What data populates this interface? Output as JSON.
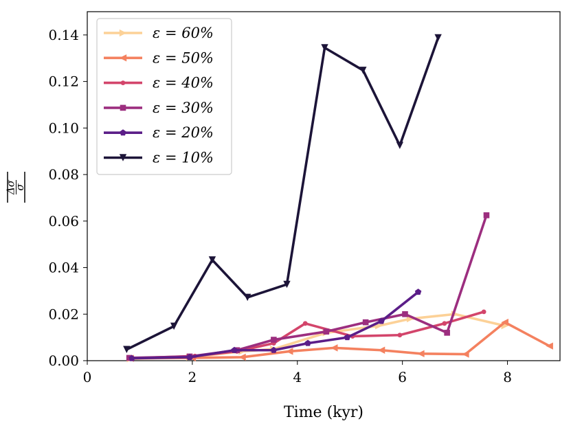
{
  "chart_data": {
    "type": "line",
    "xlabel": "Time (kyr)",
    "ylabel": "|Δσ/σ|",
    "ylabel_parts": {
      "num": "Δσ",
      "den": "σ"
    },
    "xlim": [
      0,
      9
    ],
    "ylim": [
      0,
      0.15
    ],
    "xticks": [
      0,
      2,
      4,
      6,
      8
    ],
    "yticks": [
      0.0,
      0.02,
      0.04,
      0.06,
      0.08,
      0.1,
      0.12,
      0.14
    ],
    "xtick_labels": [
      "0",
      "2",
      "4",
      "6",
      "8"
    ],
    "ytick_labels": [
      "0.00",
      "0.02",
      "0.04",
      "0.06",
      "0.08",
      "0.10",
      "0.12",
      "0.14"
    ],
    "grid": false,
    "legend_position": "top-left",
    "series": [
      {
        "name": "ε = 60%",
        "color": "#fcd197",
        "marker": "triangle-right",
        "x": [
          0.82,
          1.95,
          2.95,
          3.55,
          4.55,
          5.55,
          6.15,
          7.0,
          7.95
        ],
        "y": [
          0.0008,
          0.0015,
          0.004,
          0.005,
          0.012,
          0.015,
          0.018,
          0.02,
          0.015
        ]
      },
      {
        "name": "ε = 50%",
        "color": "#f4815f",
        "marker": "triangle-left",
        "x": [
          0.82,
          2.0,
          2.95,
          3.85,
          4.7,
          5.6,
          6.35,
          7.2,
          7.95,
          8.8
        ],
        "y": [
          0.001,
          0.0012,
          0.0015,
          0.004,
          0.0055,
          0.0045,
          0.003,
          0.0028,
          0.0165,
          0.0063
        ]
      },
      {
        "name": "ε = 40%",
        "color": "#d3456b",
        "marker": "circle",
        "x": [
          0.8,
          2.05,
          2.85,
          3.55,
          4.15,
          5.05,
          5.95,
          6.8,
          7.55
        ],
        "y": [
          0.001,
          0.002,
          0.004,
          0.0075,
          0.016,
          0.0105,
          0.011,
          0.016,
          0.021
        ]
      },
      {
        "name": "ε = 30%",
        "color": "#9c2e7f",
        "marker": "square",
        "x": [
          0.8,
          1.95,
          2.85,
          3.55,
          4.55,
          5.3,
          6.05,
          6.85,
          7.6
        ],
        "y": [
          0.0012,
          0.0018,
          0.0045,
          0.009,
          0.0125,
          0.0165,
          0.02,
          0.012,
          0.0625
        ]
      },
      {
        "name": "ε = 20%",
        "color": "#5b1e88",
        "marker": "pentagon",
        "x": [
          0.85,
          1.95,
          2.8,
          3.55,
          4.2,
          4.95,
          5.6,
          6.3
        ],
        "y": [
          0.001,
          0.0015,
          0.0045,
          0.0045,
          0.0075,
          0.01,
          0.017,
          0.0295
        ]
      },
      {
        "name": "ε = 10%",
        "color": "#1c1438",
        "marker": "triangle-down",
        "x": [
          0.75,
          1.65,
          2.38,
          3.05,
          3.8,
          4.52,
          5.25,
          5.95,
          6.68
        ],
        "y": [
          0.0048,
          0.0148,
          0.0433,
          0.0272,
          0.0328,
          0.1345,
          0.1248,
          0.0925,
          0.1388
        ]
      }
    ]
  }
}
